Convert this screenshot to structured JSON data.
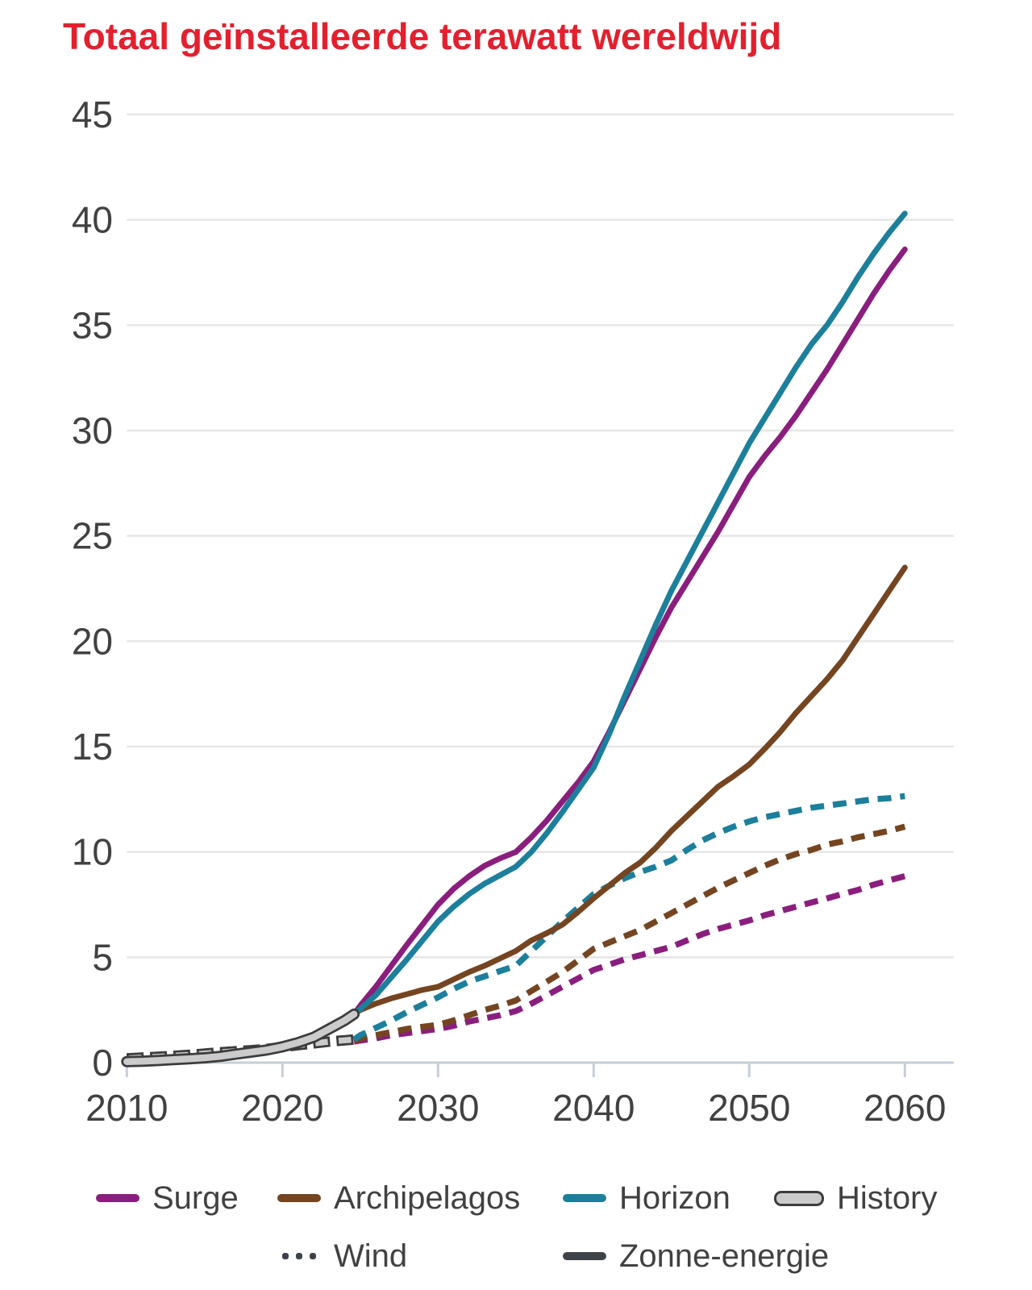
{
  "title": {
    "text": "Totaal geïnstalleerde terawatt wereldwijd",
    "color": "#e3202e"
  },
  "colors": {
    "surge": "#8a1e7d",
    "archipelagos": "#744520",
    "horizon": "#1c7f9b",
    "history_fill": "#cbcbcb",
    "history_outline": "#3c3c3c",
    "neutral_dark": "#3d4349",
    "axis": "#c6ceda",
    "grid": "#e6e6e6",
    "tick_text": "#414141"
  },
  "chart_data": {
    "type": "line",
    "title": "Totaal geïnstalleerde terawatt wereldwijd",
    "xlabel": "",
    "ylabel": "",
    "x_ticks": [
      2010,
      2020,
      2030,
      2040,
      2050,
      2060
    ],
    "y_ticks": [
      0,
      5,
      10,
      15,
      20,
      25,
      30,
      35,
      40,
      45
    ],
    "xlim": [
      2010,
      2060
    ],
    "ylim": [
      0,
      45
    ],
    "grid": "horizontal",
    "legend_position": "bottom",
    "series": [
      {
        "key": "surge-wind",
        "name": "Surge Wind",
        "scenario": "Surge",
        "variable": "Wind",
        "line_style": "dashed",
        "color_key": "surge",
        "points": [
          [
            2024.6,
            1.0
          ],
          [
            2025,
            1.05
          ],
          [
            2026,
            1.15
          ],
          [
            2027,
            1.3
          ],
          [
            2028,
            1.4
          ],
          [
            2029,
            1.5
          ],
          [
            2030,
            1.6
          ],
          [
            2031,
            1.75
          ],
          [
            2032,
            1.95
          ],
          [
            2033,
            2.1
          ],
          [
            2034,
            2.25
          ],
          [
            2035,
            2.45
          ],
          [
            2036,
            2.8
          ],
          [
            2037,
            3.2
          ],
          [
            2038,
            3.6
          ],
          [
            2039,
            4.0
          ],
          [
            2040,
            4.4
          ],
          [
            2041,
            4.65
          ],
          [
            2042,
            4.9
          ],
          [
            2043,
            5.1
          ],
          [
            2044,
            5.3
          ],
          [
            2045,
            5.5
          ],
          [
            2046,
            5.8
          ],
          [
            2047,
            6.1
          ],
          [
            2048,
            6.35
          ],
          [
            2049,
            6.55
          ],
          [
            2050,
            6.75
          ],
          [
            2051,
            7.0
          ],
          [
            2052,
            7.2
          ],
          [
            2053,
            7.4
          ],
          [
            2054,
            7.6
          ],
          [
            2055,
            7.8
          ],
          [
            2056,
            8.0
          ],
          [
            2057,
            8.2
          ],
          [
            2058,
            8.45
          ],
          [
            2059,
            8.65
          ],
          [
            2060,
            8.85
          ]
        ]
      },
      {
        "key": "archipelagos-wind",
        "name": "Archipelagos Wind",
        "scenario": "Archipelagos",
        "variable": "Wind",
        "line_style": "dashed",
        "color_key": "archipelagos",
        "points": [
          [
            2024.6,
            1.05
          ],
          [
            2025,
            1.15
          ],
          [
            2026,
            1.3
          ],
          [
            2027,
            1.45
          ],
          [
            2028,
            1.6
          ],
          [
            2029,
            1.7
          ],
          [
            2030,
            1.8
          ],
          [
            2031,
            2.0
          ],
          [
            2032,
            2.25
          ],
          [
            2033,
            2.5
          ],
          [
            2034,
            2.7
          ],
          [
            2035,
            2.95
          ],
          [
            2036,
            3.4
          ],
          [
            2037,
            3.85
          ],
          [
            2038,
            4.3
          ],
          [
            2039,
            4.85
          ],
          [
            2040,
            5.4
          ],
          [
            2041,
            5.7
          ],
          [
            2042,
            6.0
          ],
          [
            2043,
            6.3
          ],
          [
            2044,
            6.7
          ],
          [
            2045,
            7.1
          ],
          [
            2046,
            7.5
          ],
          [
            2047,
            7.9
          ],
          [
            2048,
            8.3
          ],
          [
            2049,
            8.65
          ],
          [
            2050,
            9.0
          ],
          [
            2051,
            9.35
          ],
          [
            2052,
            9.65
          ],
          [
            2053,
            9.9
          ],
          [
            2054,
            10.1
          ],
          [
            2055,
            10.35
          ],
          [
            2056,
            10.5
          ],
          [
            2057,
            10.7
          ],
          [
            2058,
            10.85
          ],
          [
            2059,
            11.0
          ],
          [
            2060,
            11.2
          ]
        ]
      },
      {
        "key": "horizon-wind",
        "name": "Horizon Wind",
        "scenario": "Horizon",
        "variable": "Wind",
        "line_style": "dashed",
        "color_key": "horizon",
        "points": [
          [
            2024.6,
            1.1
          ],
          [
            2025,
            1.3
          ],
          [
            2026,
            1.65
          ],
          [
            2027,
            2.0
          ],
          [
            2028,
            2.4
          ],
          [
            2029,
            2.75
          ],
          [
            2030,
            3.1
          ],
          [
            2031,
            3.5
          ],
          [
            2032,
            3.85
          ],
          [
            2033,
            4.1
          ],
          [
            2034,
            4.35
          ],
          [
            2035,
            4.6
          ],
          [
            2036,
            5.3
          ],
          [
            2037,
            6.0
          ],
          [
            2038,
            6.7
          ],
          [
            2039,
            7.35
          ],
          [
            2040,
            8.0
          ],
          [
            2041,
            8.4
          ],
          [
            2042,
            8.75
          ],
          [
            2043,
            9.05
          ],
          [
            2044,
            9.3
          ],
          [
            2045,
            9.6
          ],
          [
            2046,
            10.1
          ],
          [
            2047,
            10.55
          ],
          [
            2048,
            10.9
          ],
          [
            2049,
            11.2
          ],
          [
            2050,
            11.45
          ],
          [
            2051,
            11.65
          ],
          [
            2052,
            11.8
          ],
          [
            2053,
            11.95
          ],
          [
            2054,
            12.1
          ],
          [
            2055,
            12.2
          ],
          [
            2056,
            12.3
          ],
          [
            2057,
            12.4
          ],
          [
            2058,
            12.5
          ],
          [
            2059,
            12.55
          ],
          [
            2060,
            12.65
          ]
        ]
      },
      {
        "key": "archipelagos-zonne-energie",
        "name": "Archipelagos Zonne-energie",
        "scenario": "Archipelagos",
        "variable": "Zonne-energie",
        "line_style": "solid",
        "color_key": "archipelagos",
        "points": [
          [
            2024.6,
            2.3
          ],
          [
            2025,
            2.5
          ],
          [
            2026,
            2.8
          ],
          [
            2027,
            3.05
          ],
          [
            2028,
            3.25
          ],
          [
            2029,
            3.45
          ],
          [
            2030,
            3.6
          ],
          [
            2031,
            3.95
          ],
          [
            2032,
            4.3
          ],
          [
            2033,
            4.6
          ],
          [
            2034,
            4.95
          ],
          [
            2035,
            5.3
          ],
          [
            2036,
            5.8
          ],
          [
            2037,
            6.15
          ],
          [
            2038,
            6.55
          ],
          [
            2039,
            7.15
          ],
          [
            2040,
            7.8
          ],
          [
            2041,
            8.4
          ],
          [
            2042,
            9.0
          ],
          [
            2043,
            9.5
          ],
          [
            2044,
            10.2
          ],
          [
            2045,
            11.0
          ],
          [
            2046,
            11.7
          ],
          [
            2047,
            12.4
          ],
          [
            2048,
            13.1
          ],
          [
            2049,
            13.6
          ],
          [
            2050,
            14.15
          ],
          [
            2051,
            14.9
          ],
          [
            2052,
            15.7
          ],
          [
            2053,
            16.6
          ],
          [
            2054,
            17.4
          ],
          [
            2055,
            18.2
          ],
          [
            2056,
            19.1
          ],
          [
            2057,
            20.2
          ],
          [
            2058,
            21.3
          ],
          [
            2059,
            22.4
          ],
          [
            2060,
            23.5
          ]
        ]
      },
      {
        "key": "surge-zonne-energie",
        "name": "Surge Zonne-energie",
        "scenario": "Surge",
        "variable": "Zonne-energie",
        "line_style": "solid",
        "color_key": "surge",
        "points": [
          [
            2024.6,
            2.3
          ],
          [
            2025,
            2.7
          ],
          [
            2026,
            3.6
          ],
          [
            2027,
            4.6
          ],
          [
            2028,
            5.6
          ],
          [
            2029,
            6.55
          ],
          [
            2030,
            7.5
          ],
          [
            2031,
            8.25
          ],
          [
            2032,
            8.85
          ],
          [
            2033,
            9.35
          ],
          [
            2034,
            9.7
          ],
          [
            2035,
            10.0
          ],
          [
            2036,
            10.7
          ],
          [
            2037,
            11.5
          ],
          [
            2038,
            12.4
          ],
          [
            2039,
            13.3
          ],
          [
            2040,
            14.3
          ],
          [
            2041,
            15.7
          ],
          [
            2042,
            17.2
          ],
          [
            2043,
            18.7
          ],
          [
            2044,
            20.2
          ],
          [
            2045,
            21.6
          ],
          [
            2046,
            22.8
          ],
          [
            2047,
            24.0
          ],
          [
            2048,
            25.2
          ],
          [
            2049,
            26.5
          ],
          [
            2050,
            27.8
          ],
          [
            2051,
            28.8
          ],
          [
            2052,
            29.7
          ],
          [
            2053,
            30.7
          ],
          [
            2054,
            31.8
          ],
          [
            2055,
            32.9
          ],
          [
            2056,
            34.1
          ],
          [
            2057,
            35.3
          ],
          [
            2058,
            36.5
          ],
          [
            2059,
            37.6
          ],
          [
            2060,
            38.6
          ]
        ]
      },
      {
        "key": "horizon-zonne-energie",
        "name": "Horizon Zonne-energie",
        "scenario": "Horizon",
        "variable": "Zonne-energie",
        "line_style": "solid",
        "color_key": "horizon",
        "points": [
          [
            2024.6,
            2.3
          ],
          [
            2025,
            2.55
          ],
          [
            2026,
            3.2
          ],
          [
            2027,
            4.05
          ],
          [
            2028,
            4.9
          ],
          [
            2029,
            5.8
          ],
          [
            2030,
            6.7
          ],
          [
            2031,
            7.4
          ],
          [
            2032,
            8.0
          ],
          [
            2033,
            8.5
          ],
          [
            2034,
            8.9
          ],
          [
            2035,
            9.3
          ],
          [
            2036,
            10.0
          ],
          [
            2037,
            10.9
          ],
          [
            2038,
            11.9
          ],
          [
            2039,
            12.95
          ],
          [
            2040,
            14.0
          ],
          [
            2041,
            15.6
          ],
          [
            2042,
            17.4
          ],
          [
            2043,
            19.1
          ],
          [
            2044,
            20.8
          ],
          [
            2045,
            22.4
          ],
          [
            2046,
            23.8
          ],
          [
            2047,
            25.2
          ],
          [
            2048,
            26.6
          ],
          [
            2049,
            28.0
          ],
          [
            2050,
            29.4
          ],
          [
            2051,
            30.6
          ],
          [
            2052,
            31.8
          ],
          [
            2053,
            33.0
          ],
          [
            2054,
            34.1
          ],
          [
            2055,
            35.0
          ],
          [
            2056,
            36.1
          ],
          [
            2057,
            37.3
          ],
          [
            2058,
            38.4
          ],
          [
            2059,
            39.4
          ],
          [
            2060,
            40.3
          ]
        ]
      },
      {
        "key": "history-wind",
        "name": "History Wind",
        "scenario": "History",
        "variable": "Wind",
        "line_style": "dashed-outlined",
        "color_key": "history_fill",
        "points": [
          [
            2010,
            0.2
          ],
          [
            2011,
            0.24
          ],
          [
            2012,
            0.28
          ],
          [
            2013,
            0.32
          ],
          [
            2014,
            0.37
          ],
          [
            2015,
            0.43
          ],
          [
            2016,
            0.49
          ],
          [
            2017,
            0.54
          ],
          [
            2018,
            0.59
          ],
          [
            2019,
            0.65
          ],
          [
            2020,
            0.74
          ],
          [
            2021,
            0.83
          ],
          [
            2022,
            0.91
          ],
          [
            2023,
            1.0
          ],
          [
            2024,
            1.06
          ],
          [
            2024.6,
            1.1
          ]
        ]
      },
      {
        "key": "history-zonne-energie",
        "name": "History Zonne-energie",
        "scenario": "History",
        "variable": "Zonne-energie",
        "line_style": "solid-outlined",
        "color_key": "history_fill",
        "points": [
          [
            2010,
            0.05
          ],
          [
            2011,
            0.07
          ],
          [
            2012,
            0.1
          ],
          [
            2013,
            0.14
          ],
          [
            2014,
            0.18
          ],
          [
            2015,
            0.23
          ],
          [
            2016,
            0.3
          ],
          [
            2017,
            0.4
          ],
          [
            2018,
            0.5
          ],
          [
            2019,
            0.6
          ],
          [
            2020,
            0.75
          ],
          [
            2021,
            0.95
          ],
          [
            2022,
            1.2
          ],
          [
            2023,
            1.6
          ],
          [
            2024,
            2.0
          ],
          [
            2024.6,
            2.3
          ]
        ]
      }
    ]
  },
  "legend": {
    "items": [
      {
        "id": "surge",
        "label": "Surge",
        "swatch": "solid",
        "color_key": "surge"
      },
      {
        "id": "archipelagos",
        "label": "Archipelagos",
        "swatch": "solid",
        "color_key": "archipelagos"
      },
      {
        "id": "horizon",
        "label": "Horizon",
        "swatch": "solid",
        "color_key": "horizon"
      },
      {
        "id": "history",
        "label": "History",
        "swatch": "outlined",
        "color_key": "history_fill"
      },
      {
        "id": "wind",
        "label": "Wind",
        "swatch": "dots",
        "color_key": "neutral_dark"
      },
      {
        "id": "zonne",
        "label": "Zonne-energie",
        "swatch": "solid",
        "color_key": "neutral_dark"
      }
    ]
  }
}
